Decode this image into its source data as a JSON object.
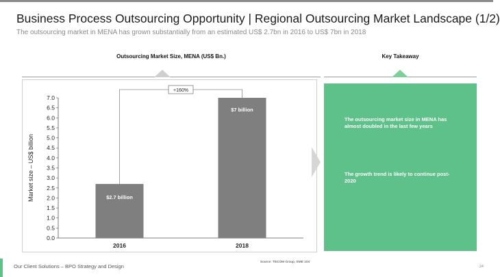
{
  "header": {
    "title": "Business Process Outsourcing Opportunity | Regional Outsourcing Market Landscape (1/2)",
    "subtitle": "The outsourcing market in MENA has grown substantially from an estimated US$ 2.7bn in 2016 to US$ 7bn in 2018"
  },
  "chart_section": {
    "heading": "Outsourcing Market Size, MENA (US$ Bn.)"
  },
  "takeaway_section": {
    "heading": "Key Takeaway",
    "points": [
      "The outsourcing market size in MENA has almost doubled in the last few years",
      "The growth trend is likely to continue post-2020"
    ]
  },
  "chart_data": {
    "type": "bar",
    "title": "Outsourcing Market Size, MENA (US$ Bn.)",
    "categories": [
      "2016",
      "2018"
    ],
    "values": [
      2.7,
      7.0
    ],
    "data_labels": [
      "$2.7 billion",
      "$7 billion"
    ],
    "ylabel": "Market size – US$ billion",
    "xlabel": "",
    "ylim": [
      0,
      7
    ],
    "yticks": [
      "0.0",
      "0.5",
      "1.0",
      "1.5",
      "2.0",
      "2.5",
      "3.0",
      "3.5",
      "4.0",
      "4.5",
      "5.0",
      "5.5",
      "6.0",
      "6.5",
      "7.0"
    ],
    "annotation": "+160%",
    "bar_color": "#7f7f7f",
    "grid": false,
    "legend": "none"
  },
  "footer": {
    "text": "Our Client Solutions – BPO Strategy and Design",
    "source": "Source: TECOM Group, SME 104",
    "page": "24"
  },
  "colors": {
    "accent": "#5fc18a",
    "bar": "#7f7f7f"
  }
}
